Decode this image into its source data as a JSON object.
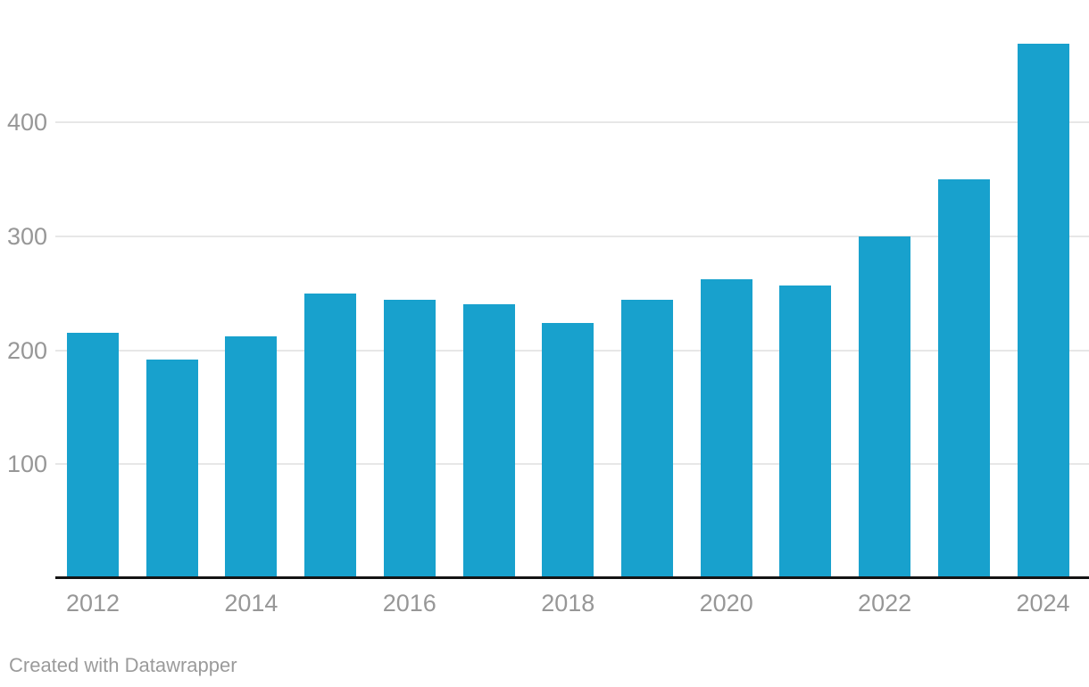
{
  "chart_data": {
    "type": "bar",
    "title": "",
    "xlabel": "",
    "ylabel": "",
    "categories": [
      "2012",
      "2013",
      "2014",
      "2015",
      "2016",
      "2017",
      "2018",
      "2019",
      "2020",
      "2021",
      "2022",
      "2023",
      "2024"
    ],
    "values": [
      215,
      192,
      212,
      250,
      244,
      240,
      224,
      244,
      262,
      257,
      300,
      350,
      469
    ],
    "ylim": [
      0,
      480
    ],
    "yticks": [
      100,
      200,
      300,
      400
    ],
    "x_tick_labels": [
      "2012",
      "2014",
      "2016",
      "2018",
      "2020",
      "2022",
      "2024"
    ],
    "grid": true,
    "legend_position": "none",
    "bar_color": "#18a1cd"
  },
  "footer": {
    "attribution": "Created with Datawrapper"
  },
  "colors": {
    "bar": "#18a1cd",
    "grid": "#e7e7e7",
    "axis": "#141414",
    "tick_label": "#979797",
    "footer_text": "#9b9b9b",
    "background": "#ffffff"
  }
}
